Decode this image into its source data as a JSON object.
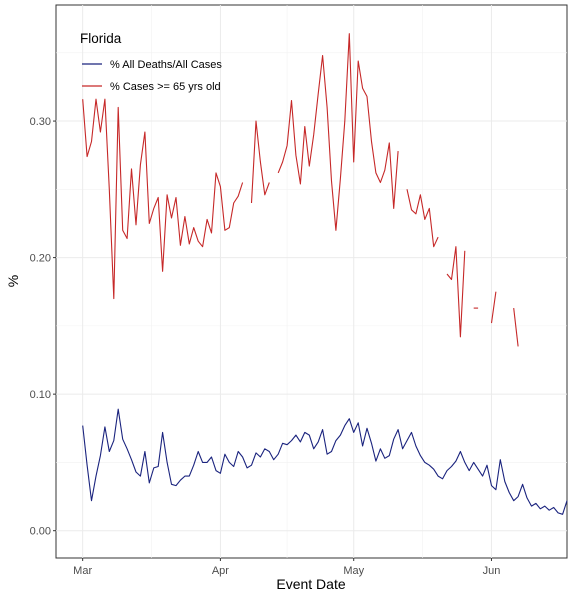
{
  "chart_data": {
    "type": "line",
    "xlabel": "Event Date",
    "ylabel": "%",
    "x_tick_labels": [
      "Mar",
      "Apr",
      "May",
      "Jun"
    ],
    "x_ticks": [
      "2020-03-01",
      "2020-04-01",
      "2020-05-01",
      "2020-06-01"
    ],
    "xlim": [
      "2020-02-24",
      "2020-06-18"
    ],
    "ylim": [
      -0.02,
      0.385
    ],
    "y_ticks": [
      0.0,
      0.1,
      0.2,
      0.3
    ],
    "y_tick_labels": [
      "0.00",
      "0.10",
      "0.20",
      "0.30"
    ],
    "grid": true,
    "legend": {
      "title": "Florida",
      "position": "top-left inside"
    },
    "series": [
      {
        "name": "% All Deaths/All Cases",
        "color": "#1a237e",
        "points": [
          [
            "2020-03-01",
            0.077
          ],
          [
            "2020-03-02",
            0.048
          ],
          [
            "2020-03-03",
            0.022
          ],
          [
            "2020-03-04",
            0.04
          ],
          [
            "2020-03-05",
            0.055
          ],
          [
            "2020-03-06",
            0.076
          ],
          [
            "2020-03-07",
            0.058
          ],
          [
            "2020-03-08",
            0.066
          ],
          [
            "2020-03-09",
            0.089
          ],
          [
            "2020-03-10",
            0.067
          ],
          [
            "2020-03-11",
            0.06
          ],
          [
            "2020-03-12",
            0.052
          ],
          [
            "2020-03-13",
            0.043
          ],
          [
            "2020-03-14",
            0.04
          ],
          [
            "2020-03-15",
            0.058
          ],
          [
            "2020-03-16",
            0.035
          ],
          [
            "2020-03-17",
            0.046
          ],
          [
            "2020-03-18",
            0.047
          ],
          [
            "2020-03-19",
            0.072
          ],
          [
            "2020-03-20",
            0.05
          ],
          [
            "2020-03-21",
            0.034
          ],
          [
            "2020-03-22",
            0.033
          ],
          [
            "2020-03-23",
            0.037
          ],
          [
            "2020-03-24",
            0.04
          ],
          [
            "2020-03-25",
            0.04
          ],
          [
            "2020-03-26",
            0.048
          ],
          [
            "2020-03-27",
            0.058
          ],
          [
            "2020-03-28",
            0.05
          ],
          [
            "2020-03-29",
            0.05
          ],
          [
            "2020-03-30",
            0.054
          ],
          [
            "2020-03-31",
            0.044
          ],
          [
            "2020-04-01",
            0.042
          ],
          [
            "2020-04-02",
            0.056
          ],
          [
            "2020-04-03",
            0.05
          ],
          [
            "2020-04-04",
            0.047
          ],
          [
            "2020-04-05",
            0.058
          ],
          [
            "2020-04-06",
            0.054
          ],
          [
            "2020-04-07",
            0.046
          ],
          [
            "2020-04-08",
            0.048
          ],
          [
            "2020-04-09",
            0.057
          ],
          [
            "2020-04-10",
            0.054
          ],
          [
            "2020-04-11",
            0.06
          ],
          [
            "2020-04-12",
            0.058
          ],
          [
            "2020-04-13",
            0.052
          ],
          [
            "2020-04-14",
            0.056
          ],
          [
            "2020-04-15",
            0.064
          ],
          [
            "2020-04-16",
            0.063
          ],
          [
            "2020-04-17",
            0.066
          ],
          [
            "2020-04-18",
            0.07
          ],
          [
            "2020-04-19",
            0.065
          ],
          [
            "2020-04-20",
            0.072
          ],
          [
            "2020-04-21",
            0.07
          ],
          [
            "2020-04-22",
            0.06
          ],
          [
            "2020-04-23",
            0.065
          ],
          [
            "2020-04-24",
            0.074
          ],
          [
            "2020-04-25",
            0.056
          ],
          [
            "2020-04-26",
            0.058
          ],
          [
            "2020-04-27",
            0.066
          ],
          [
            "2020-04-28",
            0.07
          ],
          [
            "2020-04-29",
            0.077
          ],
          [
            "2020-04-30",
            0.082
          ],
          [
            "2020-05-01",
            0.072
          ],
          [
            "2020-05-02",
            0.079
          ],
          [
            "2020-05-03",
            0.062
          ],
          [
            "2020-05-04",
            0.075
          ],
          [
            "2020-05-05",
            0.064
          ],
          [
            "2020-05-06",
            0.051
          ],
          [
            "2020-05-07",
            0.06
          ],
          [
            "2020-05-08",
            0.053
          ],
          [
            "2020-05-09",
            0.055
          ],
          [
            "2020-05-10",
            0.067
          ],
          [
            "2020-05-11",
            0.074
          ],
          [
            "2020-05-12",
            0.06
          ],
          [
            "2020-05-13",
            0.066
          ],
          [
            "2020-05-14",
            0.072
          ],
          [
            "2020-05-15",
            0.062
          ],
          [
            "2020-05-16",
            0.055
          ],
          [
            "2020-05-17",
            0.05
          ],
          [
            "2020-05-18",
            0.048
          ],
          [
            "2020-05-19",
            0.045
          ],
          [
            "2020-05-20",
            0.04
          ],
          [
            "2020-05-21",
            0.038
          ],
          [
            "2020-05-22",
            0.044
          ],
          [
            "2020-05-23",
            0.047
          ],
          [
            "2020-05-24",
            0.051
          ],
          [
            "2020-05-25",
            0.058
          ],
          [
            "2020-05-26",
            0.05
          ],
          [
            "2020-05-27",
            0.044
          ],
          [
            "2020-05-28",
            0.05
          ],
          [
            "2020-05-29",
            0.045
          ],
          [
            "2020-05-30",
            0.04
          ],
          [
            "2020-05-31",
            0.048
          ],
          [
            "2020-06-01",
            0.033
          ],
          [
            "2020-06-02",
            0.03
          ],
          [
            "2020-06-03",
            0.052
          ],
          [
            "2020-06-04",
            0.036
          ],
          [
            "2020-06-05",
            0.028
          ],
          [
            "2020-06-06",
            0.022
          ],
          [
            "2020-06-07",
            0.025
          ],
          [
            "2020-06-08",
            0.034
          ],
          [
            "2020-06-09",
            0.024
          ],
          [
            "2020-06-10",
            0.018
          ],
          [
            "2020-06-11",
            0.02
          ],
          [
            "2020-06-12",
            0.016
          ],
          [
            "2020-06-13",
            0.018
          ],
          [
            "2020-06-14",
            0.015
          ],
          [
            "2020-06-15",
            0.017
          ],
          [
            "2020-06-16",
            0.013
          ],
          [
            "2020-06-17",
            0.012
          ],
          [
            "2020-06-18",
            0.022
          ]
        ]
      },
      {
        "name": "% Cases >= 65 yrs old",
        "color": "#c62828",
        "points": [
          [
            "2020-03-01",
            0.316
          ],
          [
            "2020-03-02",
            0.274
          ],
          [
            "2020-03-03",
            0.285
          ],
          [
            "2020-03-04",
            0.316
          ],
          [
            "2020-03-05",
            0.292
          ],
          [
            "2020-03-06",
            0.316
          ],
          [
            "2020-03-07",
            0.25
          ],
          [
            "2020-03-08",
            0.17
          ],
          [
            "2020-03-09",
            0.31
          ],
          [
            "2020-03-10",
            0.22
          ],
          [
            "2020-03-11",
            0.214
          ],
          [
            "2020-03-12",
            0.265
          ],
          [
            "2020-03-13",
            0.224
          ],
          [
            "2020-03-14",
            0.268
          ],
          [
            "2020-03-15",
            0.292
          ],
          [
            "2020-03-16",
            0.225
          ],
          [
            "2020-03-17",
            0.236
          ],
          [
            "2020-03-18",
            0.244
          ],
          [
            "2020-03-19",
            0.19
          ],
          [
            "2020-03-20",
            0.246
          ],
          [
            "2020-03-21",
            0.229
          ],
          [
            "2020-03-22",
            0.244
          ],
          [
            "2020-03-23",
            0.209
          ],
          [
            "2020-03-24",
            0.23
          ],
          [
            "2020-03-25",
            0.21
          ],
          [
            "2020-03-26",
            0.222
          ],
          [
            "2020-03-27",
            0.212
          ],
          [
            "2020-03-28",
            0.208
          ],
          [
            "2020-03-29",
            0.228
          ],
          [
            "2020-03-30",
            0.218
          ],
          [
            "2020-03-31",
            0.262
          ],
          [
            "2020-04-01",
            0.252
          ],
          [
            "2020-04-02",
            0.22
          ],
          [
            "2020-04-03",
            0.222
          ],
          [
            "2020-04-04",
            0.24
          ],
          [
            "2020-04-05",
            0.245
          ],
          [
            "2020-04-06",
            0.255
          ],
          null,
          [
            "2020-04-08",
            0.24
          ],
          [
            "2020-04-09",
            0.3
          ],
          [
            "2020-04-10",
            0.27
          ],
          [
            "2020-04-11",
            0.246
          ],
          [
            "2020-04-12",
            0.255
          ],
          null,
          [
            "2020-04-14",
            0.262
          ],
          [
            "2020-04-15",
            0.27
          ],
          [
            "2020-04-16",
            0.282
          ],
          [
            "2020-04-17",
            0.315
          ],
          [
            "2020-04-18",
            0.275
          ],
          [
            "2020-04-19",
            0.254
          ],
          [
            "2020-04-20",
            0.296
          ],
          [
            "2020-04-21",
            0.267
          ],
          [
            "2020-04-22",
            0.29
          ],
          [
            "2020-04-23",
            0.32
          ],
          [
            "2020-04-24",
            0.348
          ],
          [
            "2020-04-25",
            0.31
          ],
          [
            "2020-04-26",
            0.256
          ],
          [
            "2020-04-27",
            0.22
          ],
          [
            "2020-04-28",
            0.258
          ],
          [
            "2020-04-29",
            0.3
          ],
          [
            "2020-04-30",
            0.364
          ],
          [
            "2020-05-01",
            0.27
          ],
          [
            "2020-05-02",
            0.344
          ],
          [
            "2020-05-03",
            0.324
          ],
          [
            "2020-05-04",
            0.318
          ],
          [
            "2020-05-05",
            0.285
          ],
          [
            "2020-05-06",
            0.262
          ],
          [
            "2020-05-07",
            0.255
          ],
          [
            "2020-05-08",
            0.264
          ],
          [
            "2020-05-09",
            0.284
          ],
          [
            "2020-05-10",
            0.236
          ],
          [
            "2020-05-11",
            0.278
          ],
          null,
          [
            "2020-05-13",
            0.25
          ],
          [
            "2020-05-14",
            0.235
          ],
          [
            "2020-05-15",
            0.232
          ],
          [
            "2020-05-16",
            0.246
          ],
          [
            "2020-05-17",
            0.228
          ],
          [
            "2020-05-18",
            0.236
          ],
          [
            "2020-05-19",
            0.208
          ],
          [
            "2020-05-20",
            0.215
          ],
          null,
          [
            "2020-05-22",
            0.188
          ],
          [
            "2020-05-23",
            0.184
          ],
          [
            "2020-05-24",
            0.208
          ],
          [
            "2020-05-25",
            0.142
          ],
          [
            "2020-05-26",
            0.205
          ],
          null,
          [
            "2020-05-28",
            0.163
          ],
          [
            "2020-05-29",
            0.163
          ],
          null,
          [
            "2020-06-01",
            0.152
          ],
          [
            "2020-06-02",
            0.175
          ],
          null,
          [
            "2020-06-06",
            0.163
          ],
          [
            "2020-06-07",
            0.135
          ]
        ]
      }
    ]
  }
}
